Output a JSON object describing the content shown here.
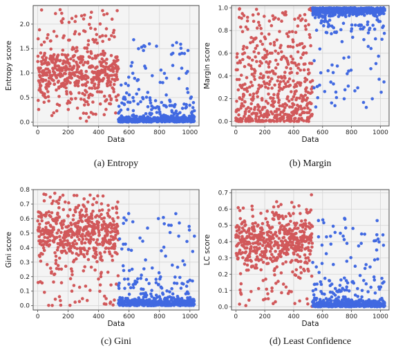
{
  "colors": {
    "low": "#d1585a",
    "high": "#4169e1"
  },
  "chart_data": [
    {
      "type": "scatter",
      "caption": "(a)  Entropy",
      "xlabel": "Data",
      "ylabel": "Entropy score",
      "xlim": [
        -30,
        1060
      ],
      "ylim": [
        -0.08,
        2.38
      ],
      "xticks": [
        0,
        200,
        400,
        600,
        800,
        1000
      ],
      "yticks": [
        0.0,
        0.5,
        1.0,
        1.5,
        2.0
      ],
      "ytick_labels": [
        "0.0",
        "0.5",
        "1.0",
        "1.5",
        "2.0"
      ],
      "series": [
        {
          "color_key": "low",
          "x_range": [
            0,
            530
          ],
          "count": 530,
          "pattern": "band",
          "center": 1.0,
          "spread": 0.45,
          "min": 0.0,
          "max": 2.3
        },
        {
          "color_key": "high",
          "x_range": [
            530,
            1030
          ],
          "count": 500,
          "pattern": "floor",
          "floor": 0.0,
          "max": 1.7
        }
      ]
    },
    {
      "type": "scatter",
      "caption": "(b)  Margin",
      "xlabel": "Data",
      "ylabel": "Margin score",
      "xlim": [
        -30,
        1060
      ],
      "ylim": [
        -0.04,
        1.02
      ],
      "xticks": [
        0,
        200,
        400,
        600,
        800,
        1000
      ],
      "yticks": [
        0.0,
        0.2,
        0.4,
        0.6,
        0.8,
        1.0
      ],
      "ytick_labels": [
        "0.0",
        "0.2",
        "0.4",
        "0.6",
        "0.8",
        "1.0"
      ],
      "series": [
        {
          "color_key": "low",
          "x_range": [
            0,
            530
          ],
          "count": 530,
          "pattern": "low_heavy",
          "min": 0.0,
          "max": 1.0
        },
        {
          "color_key": "high",
          "x_range": [
            530,
            1030
          ],
          "count": 500,
          "pattern": "ceiling",
          "ceiling": 1.0,
          "min": 0.08
        }
      ]
    },
    {
      "type": "scatter",
      "caption": "(c)  Gini",
      "xlabel": "Data",
      "ylabel": "Gini score",
      "xlim": [
        -30,
        1060
      ],
      "ylim": [
        -0.03,
        0.8
      ],
      "xticks": [
        0,
        200,
        400,
        600,
        800,
        1000
      ],
      "yticks": [
        0.0,
        0.1,
        0.2,
        0.3,
        0.4,
        0.5,
        0.6,
        0.7,
        0.8
      ],
      "ytick_labels": [
        "0.0",
        "0.1",
        "0.2",
        "0.3",
        "0.4",
        "0.5",
        "0.6",
        "0.7",
        "0.8"
      ],
      "series": [
        {
          "color_key": "low",
          "x_range": [
            0,
            530
          ],
          "count": 530,
          "pattern": "band",
          "center": 0.5,
          "spread": 0.17,
          "min": 0.0,
          "max": 0.78
        },
        {
          "color_key": "high",
          "x_range": [
            530,
            1030
          ],
          "count": 500,
          "pattern": "floor",
          "floor": 0.0,
          "max": 0.65
        }
      ]
    },
    {
      "type": "scatter",
      "caption": "(d)  Least Confidence",
      "xlabel": "Data",
      "ylabel": "LC score",
      "xlim": [
        -30,
        1060
      ],
      "ylim": [
        -0.02,
        0.72
      ],
      "xticks": [
        0,
        200,
        400,
        600,
        800,
        1000
      ],
      "yticks": [
        0.0,
        0.1,
        0.2,
        0.3,
        0.4,
        0.5,
        0.6,
        0.7
      ],
      "ytick_labels": [
        "0.0",
        "0.1",
        "0.2",
        "0.3",
        "0.4",
        "0.5",
        "0.6",
        "0.7"
      ],
      "series": [
        {
          "color_key": "low",
          "x_range": [
            0,
            530
          ],
          "count": 530,
          "pattern": "band",
          "center": 0.4,
          "spread": 0.14,
          "min": 0.0,
          "max": 0.7
        },
        {
          "color_key": "high",
          "x_range": [
            530,
            1030
          ],
          "count": 500,
          "pattern": "floor",
          "floor": 0.0,
          "max": 0.55
        }
      ]
    }
  ]
}
